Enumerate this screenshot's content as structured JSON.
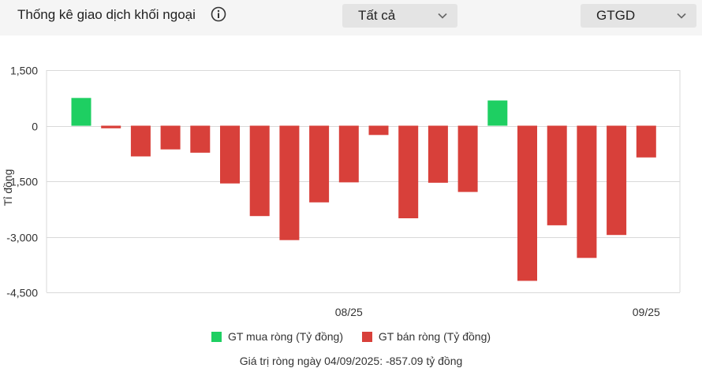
{
  "header": {
    "title": "Thống kê giao dịch khối ngoại",
    "filter": {
      "selected": "Tất cả"
    },
    "metric": {
      "selected": "GTGD"
    }
  },
  "chart_data": {
    "type": "bar",
    "title": "",
    "ylabel": "Tỉ đồng",
    "xlabel": "",
    "ylim": [
      -4500,
      1500
    ],
    "yticks": [
      1500,
      0,
      -1500,
      -3000,
      -4500
    ],
    "ytick_labels": [
      "1,500",
      "0",
      "-1,500",
      "-3,000",
      "-4,500"
    ],
    "xtick_labels": [
      {
        "label": "08/25",
        "index": 9
      },
      {
        "label": "09/25",
        "index": 19
      }
    ],
    "values": [
      750,
      -70,
      -830,
      -640,
      -730,
      -1560,
      -2440,
      -3090,
      -2070,
      -1530,
      -250,
      -2500,
      -1540,
      -1790,
      680,
      -4190,
      -2690,
      -3570,
      -2950,
      -857.09
    ],
    "grid": true,
    "legend": {
      "placement": "bottom",
      "items": [
        {
          "label": "GT mua ròng (Tỷ đồng)",
          "color": "#1ecf62"
        },
        {
          "label": "GT bán ròng (Tỷ đồng)",
          "color": "#d8403a"
        }
      ]
    },
    "footnote": "Giá trị ròng ngày 04/09/2025: -857.09 tỷ đồng"
  },
  "colors": {
    "positive": "#1ecf62",
    "negative": "#d8403a",
    "grid": "#d9d9d9"
  }
}
